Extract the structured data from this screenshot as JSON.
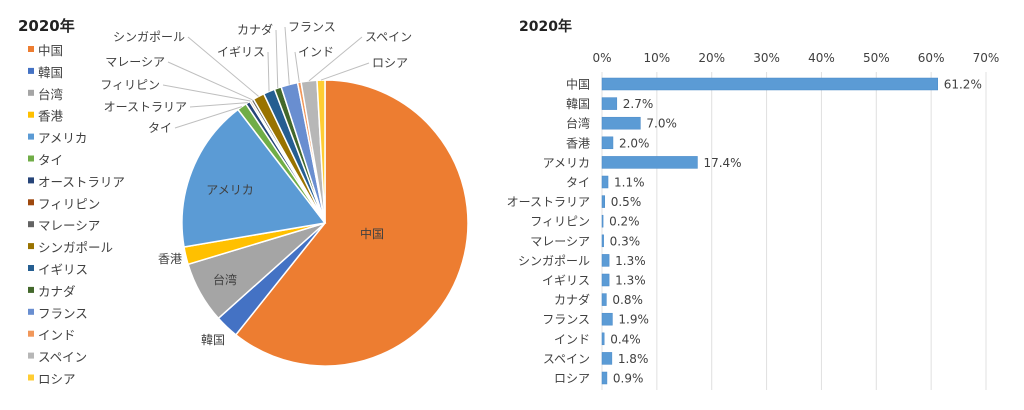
{
  "chart_data": [
    {
      "type": "pie",
      "title": "2020年",
      "legend_position": "left",
      "categories": [
        "中国",
        "韓国",
        "台湾",
        "香港",
        "アメリカ",
        "タイ",
        "オーストラリア",
        "フィリピン",
        "マレーシア",
        "シンガポール",
        "イギリス",
        "カナダ",
        "フランス",
        "インド",
        "スペイン",
        "ロシア"
      ],
      "values": [
        61.2,
        2.7,
        7.0,
        2.0,
        17.4,
        1.1,
        0.5,
        0.2,
        0.3,
        1.3,
        1.3,
        0.8,
        1.9,
        0.4,
        1.8,
        0.9
      ],
      "colors": [
        "#ED7D31",
        "#4472C4",
        "#A5A5A5",
        "#FFC000",
        "#5B9BD5",
        "#70AD47",
        "#264478",
        "#9E480E",
        "#636363",
        "#997300",
        "#255E91",
        "#43682B",
        "#698ED0",
        "#F1975A",
        "#B7B7B7",
        "#FFCD33"
      ],
      "start": "top",
      "direction": "clockwise"
    },
    {
      "type": "bar",
      "orientation": "horizontal",
      "title": "2020年",
      "categories": [
        "中国",
        "韓国",
        "台湾",
        "香港",
        "アメリカ",
        "タイ",
        "オーストラリア",
        "フィリピン",
        "マレーシア",
        "シンガポール",
        "イギリス",
        "カナダ",
        "フランス",
        "インド",
        "スペイン",
        "ロシア"
      ],
      "values": [
        61.2,
        2.7,
        7.0,
        2.0,
        17.4,
        1.1,
        0.5,
        0.2,
        0.3,
        1.3,
        1.3,
        0.8,
        1.9,
        0.4,
        1.8,
        0.9
      ],
      "data_labels": [
        "61.2%",
        "2.7%",
        "7.0%",
        "2.0%",
        "17.4%",
        "1.1%",
        "0.5%",
        "0.2%",
        "0.3%",
        "1.3%",
        "1.3%",
        "0.8%",
        "1.9%",
        "0.4%",
        "1.8%",
        "0.9%"
      ],
      "xlim": [
        0,
        70
      ],
      "xticks": [
        "0%",
        "10%",
        "20%",
        "30%",
        "40%",
        "50%",
        "60%",
        "70%"
      ],
      "grid": true,
      "bar_color": "#5B9BD5"
    }
  ]
}
